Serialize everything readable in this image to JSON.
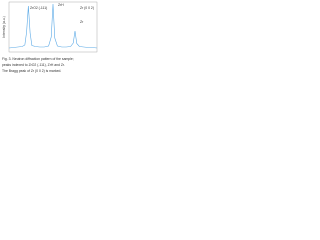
{
  "chart_data": {
    "type": "line",
    "y_label": "Intensity (a.u.)",
    "x": [
      0,
      5,
      10,
      15,
      18,
      20,
      22,
      24,
      26,
      30,
      35,
      40,
      45,
      48,
      50,
      52,
      55,
      60,
      65,
      70,
      73,
      75,
      77,
      80,
      85,
      90,
      95,
      100
    ],
    "series": [
      {
        "name": "ZrO2 (-111)",
        "color": "#5aa9e6",
        "values": [
          8,
          9,
          10,
          11,
          14,
          40,
          92,
          38,
          13,
          11,
          10,
          10,
          12,
          30,
          96,
          28,
          12,
          10,
          10,
          11,
          18,
          42,
          17,
          11,
          10,
          9,
          9,
          8
        ]
      }
    ],
    "annotations": [
      "ZrO2 (-111)",
      "ZrH",
      "Zr",
      "Zr (0 0 2)"
    ],
    "xlim": [
      0,
      100
    ],
    "ylim": [
      0,
      100
    ]
  },
  "caption": [
    "Fig. 3. Neutron diffraction pattern of the sample;",
    "peaks indexed to ZrO2 (-111), ZrH and Zr.",
    "The Bragg peak of Zr (0 0 2) is marked."
  ]
}
